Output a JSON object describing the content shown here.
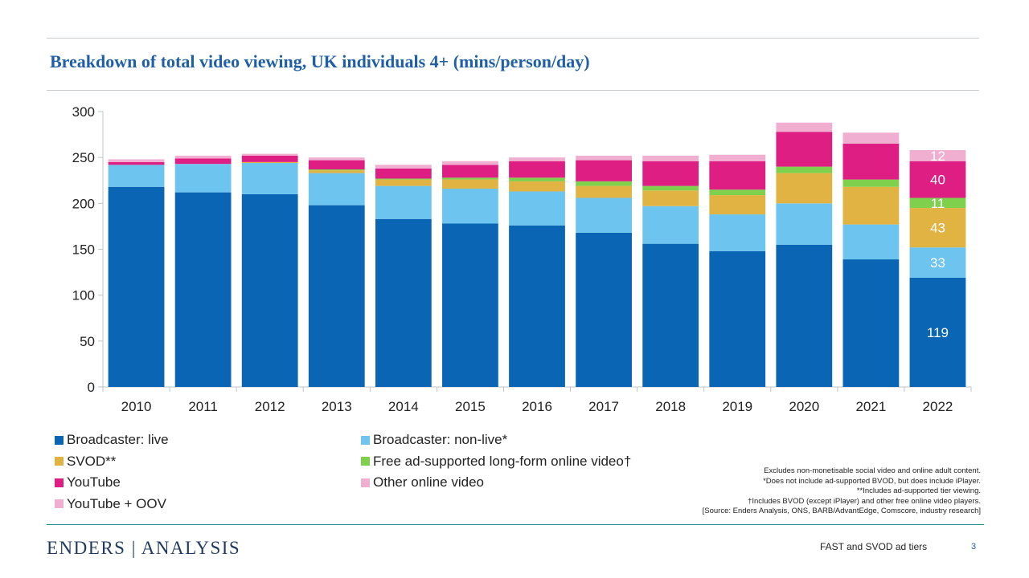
{
  "slide": {
    "title": "Breakdown of total video viewing, UK individuals 4+ (mins/person/day)",
    "notes": [
      "Excludes non-monetisable social video and online adult content.",
      "*Does not include ad-supported BVOD, but does include iPlayer.",
      "**Includes ad-supported tier viewing.",
      "†Includes BVOD (except iPlayer) and other free online video players.",
      "[Source: Enders Analysis, ONS, BARB/AdvantEdge, Comscore, industry research]"
    ],
    "footer": {
      "logo": "ENDERS | ANALYSIS",
      "deck_title": "FAST and SVOD ad tiers",
      "page": "3"
    }
  },
  "colors": {
    "axis": "#bfc4c9",
    "text": "#222222",
    "accent": "#1f5fa8"
  },
  "chart_data": {
    "type": "bar",
    "stacked": true,
    "categories": [
      "2010",
      "2011",
      "2012",
      "2013",
      "2014",
      "2015",
      "2016",
      "2017",
      "2018",
      "2019",
      "2020",
      "2021",
      "2022"
    ],
    "ylim": [
      0,
      300
    ],
    "yticks": [
      0,
      50,
      100,
      150,
      200,
      250,
      300
    ],
    "grid": false,
    "legend_position": "bottom",
    "series": [
      {
        "name": "Broadcaster: live",
        "color": "#0a66b4",
        "values": [
          218,
          212,
          210,
          198,
          183,
          178,
          176,
          168,
          156,
          148,
          155,
          139,
          119
        ]
      },
      {
        "name": "Broadcaster: non-live*",
        "color": "#6cc4ef",
        "values": [
          24,
          31,
          34,
          35,
          36,
          38,
          37,
          38,
          41,
          40,
          45,
          38,
          33
        ]
      },
      {
        "name": "SVOD**",
        "color": "#e1b343",
        "values": [
          0,
          0,
          1,
          3,
          7,
          10,
          11,
          13,
          17,
          21,
          33,
          41,
          43
        ]
      },
      {
        "name": "Free ad-supported long-form online video†",
        "color": "#7ed04d",
        "values": [
          0,
          0,
          0,
          1,
          1,
          2,
          4,
          5,
          5,
          6,
          7,
          8,
          11
        ]
      },
      {
        "name": "YouTube",
        "color": "#de1e82",
        "values": [
          3,
          6,
          7,
          10,
          11,
          14,
          18,
          23,
          27,
          31,
          38,
          39,
          40
        ]
      },
      {
        "name": "Other online video",
        "color": "#f0aed0",
        "values": [
          3,
          3,
          2,
          3,
          4,
          4,
          4,
          5,
          6,
          7,
          10,
          12,
          0
        ]
      },
      {
        "name": "YouTube + OOV",
        "color": "#f0aed0",
        "values": [
          0,
          0,
          0,
          0,
          0,
          0,
          0,
          0,
          0,
          0,
          0,
          0,
          12
        ]
      }
    ],
    "data_labels": [
      {
        "category": "2022",
        "series": "Broadcaster: live",
        "text": "119"
      },
      {
        "category": "2022",
        "series": "Broadcaster: non-live*",
        "text": "33"
      },
      {
        "category": "2022",
        "series": "SVOD**",
        "text": "43"
      },
      {
        "category": "2022",
        "series": "Free ad-supported long-form online video†",
        "text": "11"
      },
      {
        "category": "2022",
        "series": "YouTube",
        "text": "40"
      },
      {
        "category": "2022",
        "series": "YouTube + OOV",
        "text": "12"
      }
    ]
  }
}
